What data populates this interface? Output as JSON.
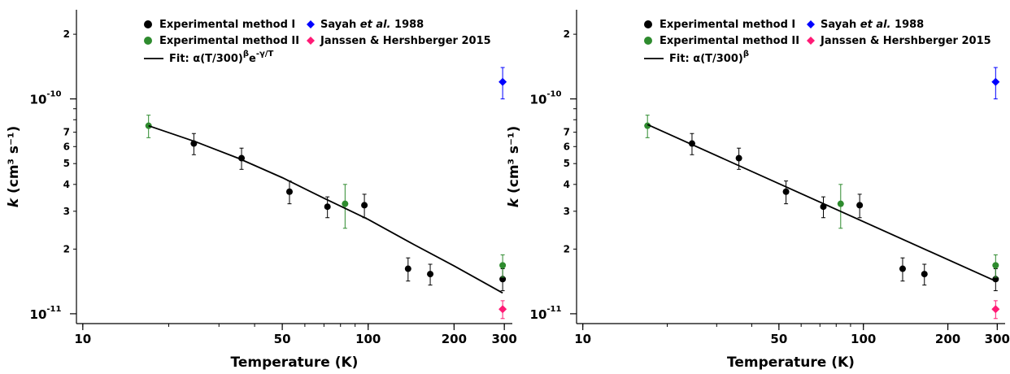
{
  "chart_data": [
    {
      "type": "scatter",
      "xscale": "log",
      "yscale": "log",
      "xlim": [
        9.5,
        320
      ],
      "ylim": [
        9e-12,
        2.6e-10
      ],
      "xlabel": "Temperature (K)",
      "ylabel_italic": "k",
      "ylabel_rest": " (cm³ s⁻¹)",
      "x_ticks": [
        10,
        50,
        100,
        200,
        300
      ],
      "x_tick_labels": [
        "10",
        "50",
        "100",
        "200",
        "300"
      ],
      "y_major_ticks": [
        {
          "value": 1e-11,
          "mantissa": "10",
          "exponent": "-11"
        },
        {
          "value": 1e-10,
          "mantissa": "10",
          "exponent": "-10"
        }
      ],
      "y_minor_ticks": [
        2e-11,
        3e-11,
        4e-11,
        5e-11,
        6e-11,
        7e-11,
        2e-10
      ],
      "y_minor_labels": [
        "2",
        "3",
        "4",
        "5",
        "6",
        "7",
        "2"
      ],
      "legend": {
        "left": [
          {
            "label": "Experimental method I",
            "marker": "circle",
            "color": "#000000"
          },
          {
            "label": "Experimental method II",
            "marker": "circle",
            "color": "#2e8b2e"
          },
          {
            "label_pre": "Fit: α(T/300)",
            "sup1": "β",
            "label_mid": "e",
            "sup2": "-γ/T",
            "marker": "line",
            "color": "#000000"
          }
        ],
        "right": [
          {
            "label_pre": "Sayah ",
            "label_italic": "et al.",
            "label_post": " 1988",
            "marker": "diamond",
            "color": "#0000ff"
          },
          {
            "label": "Janssen & Hershberger 2015",
            "marker": "diamond",
            "color": "#ff1a75"
          }
        ]
      },
      "series": [
        {
          "name": "Experimental method I",
          "marker": "circle",
          "color": "#000000",
          "x": [
            24.5,
            36,
            53,
            72,
            97,
            138,
            165,
            296
          ],
          "y": [
            6.2e-11,
            5.3e-11,
            3.7e-11,
            3.15e-11,
            3.2e-11,
            1.62e-11,
            1.53e-11,
            1.45e-11
          ],
          "err": [
            7e-12,
            6e-12,
            4.5e-12,
            3.5e-12,
            4e-12,
            2e-12,
            1.7e-12,
            1.7e-12
          ]
        },
        {
          "name": "Experimental method II",
          "marker": "circle",
          "color": "#2e8b2e",
          "x": [
            17,
            83,
            296
          ],
          "y": [
            7.5e-11,
            3.25e-11,
            1.68e-11
          ],
          "err": [
            9e-12,
            7.5e-12,
            2e-12
          ]
        },
        {
          "name": "Sayah et al. 1988",
          "marker": "diamond",
          "color": "#0000ff",
          "x": [
            296
          ],
          "y": [
            1.2e-10
          ],
          "err": [
            2e-11
          ]
        },
        {
          "name": "Janssen & Hershberger 2015",
          "marker": "diamond",
          "color": "#ff1a75",
          "x": [
            296
          ],
          "y": [
            1.05e-11
          ],
          "err": [
            1e-12
          ]
        },
        {
          "name": "Fit: α(T/300)^β e^(-γ/T)",
          "marker": "line",
          "color": "#000000",
          "x": [
            17,
            25,
            35,
            50,
            70,
            100,
            140,
            200,
            296
          ],
          "y": [
            7.5e-11,
            6.3e-11,
            5.3e-11,
            4.3e-11,
            3.45e-11,
            2.75e-11,
            2.15e-11,
            1.67e-11,
            1.25e-11
          ]
        }
      ]
    },
    {
      "type": "scatter",
      "xscale": "log",
      "yscale": "log",
      "xlim": [
        9.5,
        320
      ],
      "ylim": [
        9e-12,
        2.6e-10
      ],
      "xlabel": "Temperature (K)",
      "ylabel_italic": "k",
      "ylabel_rest": " (cm³ s⁻¹)",
      "x_ticks": [
        10,
        50,
        100,
        200,
        300
      ],
      "x_tick_labels": [
        "10",
        "50",
        "100",
        "200",
        "300"
      ],
      "y_major_ticks": [
        {
          "value": 1e-11,
          "mantissa": "10",
          "exponent": "-11"
        },
        {
          "value": 1e-10,
          "mantissa": "10",
          "exponent": "-10"
        }
      ],
      "y_minor_ticks": [
        2e-11,
        3e-11,
        4e-11,
        5e-11,
        6e-11,
        7e-11,
        2e-10
      ],
      "y_minor_labels": [
        "2",
        "3",
        "4",
        "5",
        "6",
        "7",
        "2"
      ],
      "legend": {
        "left": [
          {
            "label": "Experimental method I",
            "marker": "circle",
            "color": "#000000"
          },
          {
            "label": "Experimental method II",
            "marker": "circle",
            "color": "#2e8b2e"
          },
          {
            "label_pre": "Fit: α(T/300)",
            "sup1": "β",
            "marker": "line",
            "color": "#000000"
          }
        ],
        "right": [
          {
            "label_pre": "Sayah ",
            "label_italic": "et al.",
            "label_post": " 1988",
            "marker": "diamond",
            "color": "#0000ff"
          },
          {
            "label": "Janssen & Hershberger 2015",
            "marker": "diamond",
            "color": "#ff1a75"
          }
        ]
      },
      "series": [
        {
          "name": "Experimental method I",
          "marker": "circle",
          "color": "#000000",
          "x": [
            24.5,
            36,
            53,
            72,
            97,
            138,
            165,
            296
          ],
          "y": [
            6.2e-11,
            5.3e-11,
            3.7e-11,
            3.15e-11,
            3.2e-11,
            1.62e-11,
            1.53e-11,
            1.45e-11
          ],
          "err": [
            7e-12,
            6e-12,
            4.5e-12,
            3.5e-12,
            4e-12,
            2e-12,
            1.7e-12,
            1.7e-12
          ]
        },
        {
          "name": "Experimental method II",
          "marker": "circle",
          "color": "#2e8b2e",
          "x": [
            17,
            83,
            296
          ],
          "y": [
            7.5e-11,
            3.25e-11,
            1.68e-11
          ],
          "err": [
            9e-12,
            7.5e-12,
            2e-12
          ]
        },
        {
          "name": "Sayah et al. 1988",
          "marker": "diamond",
          "color": "#0000ff",
          "x": [
            296
          ],
          "y": [
            1.2e-10
          ],
          "err": [
            2e-11
          ]
        },
        {
          "name": "Janssen & Hershberger 2015",
          "marker": "diamond",
          "color": "#ff1a75",
          "x": [
            296
          ],
          "y": [
            1.05e-11
          ],
          "err": [
            1e-12
          ]
        },
        {
          "name": "Fit: α(T/300)^β",
          "marker": "line",
          "color": "#000000",
          "x": [
            17,
            296
          ],
          "y": [
            7.6e-11,
            1.42e-11
          ]
        }
      ]
    }
  ]
}
